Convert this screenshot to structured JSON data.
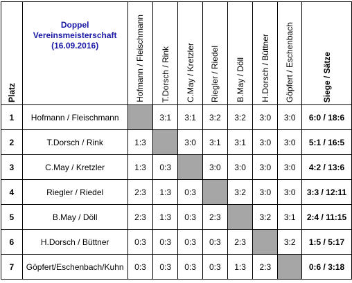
{
  "title": {
    "line1": "Doppel",
    "line2": "Vereinsmeisterschaft",
    "line3": "(16.09.2016)"
  },
  "columns": {
    "platz": "Platz",
    "siege": "Siege / Sätze"
  },
  "teams": [
    {
      "rank": "1",
      "name": "Hofmann / Fleischmann",
      "short": "Hofmann / Fleischmann",
      "results": [
        "",
        "3:1",
        "3:1",
        "3:2",
        "3:2",
        "3:0",
        "3:0"
      ],
      "summary": "6:0 / 18:6"
    },
    {
      "rank": "2",
      "name": "T.Dorsch / Rink",
      "short": "T.Dorsch / Rink",
      "results": [
        "1:3",
        "",
        "3:0",
        "3:1",
        "3:1",
        "3:0",
        "3:0"
      ],
      "summary": "5:1 / 16:5"
    },
    {
      "rank": "3",
      "name": "C.May / Kretzler",
      "short": "C.May / Kretzler",
      "results": [
        "1:3",
        "0:3",
        "",
        "3:0",
        "3:0",
        "3:0",
        "3:0"
      ],
      "summary": "4:2 / 13:6"
    },
    {
      "rank": "4",
      "name": "Riegler / Riedel",
      "short": "Riegler / Riedel",
      "results": [
        "2:3",
        "1:3",
        "0:3",
        "",
        "3:2",
        "3:0",
        "3:0"
      ],
      "summary": "3:3 / 12:11"
    },
    {
      "rank": "5",
      "name": "B.May / Döll",
      "short": "B.May / Döll",
      "results": [
        "2:3",
        "1:3",
        "0:3",
        "2:3",
        "",
        "3:2",
        "3:1"
      ],
      "summary": "2:4 / 11:15"
    },
    {
      "rank": "6",
      "name": "H.Dorsch / Büttner",
      "short": "H.Dorsch / Büttner",
      "results": [
        "0:3",
        "0:3",
        "0:3",
        "0:3",
        "2:3",
        "",
        "3:2"
      ],
      "summary": "1:5 / 5:17"
    },
    {
      "rank": "7",
      "name": "Göpfert/Eschenbach/Kuhn",
      "short": "Göpfert / Eschenbach",
      "results": [
        "0:3",
        "0:3",
        "0:3",
        "0:3",
        "1:3",
        "2:3",
        ""
      ],
      "summary": "0:6 / 3:18"
    }
  ]
}
